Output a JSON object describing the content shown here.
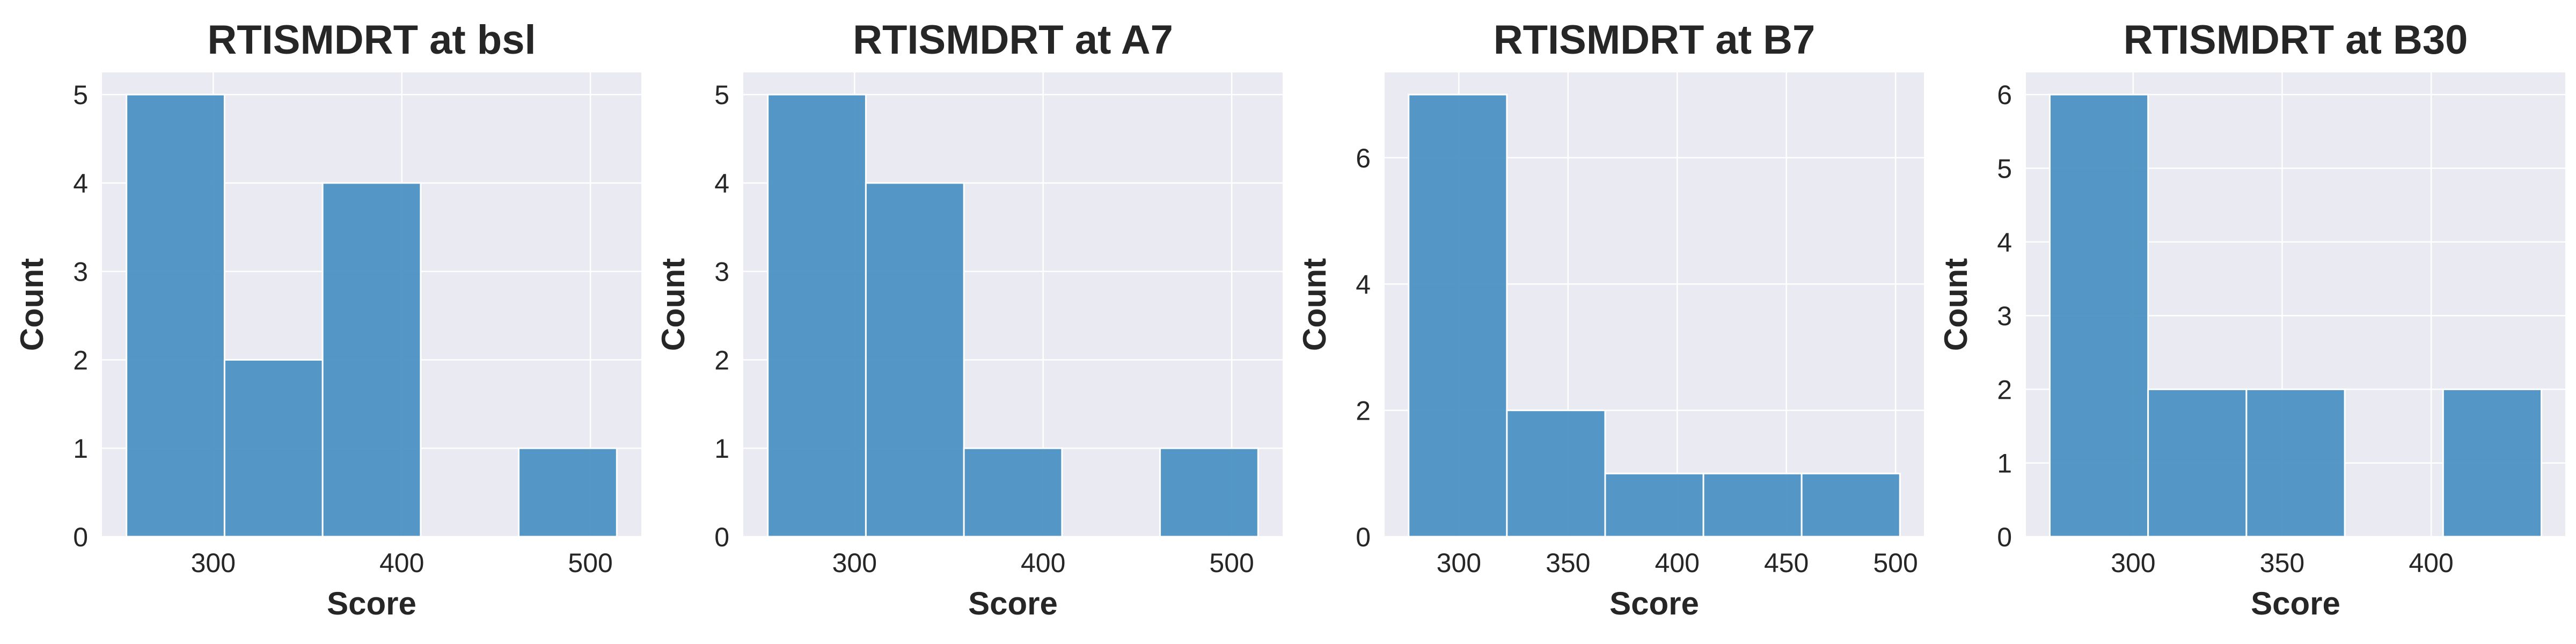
{
  "chart_data": [
    {
      "type": "bar",
      "title": "RTISMDRT at bsl",
      "xlabel": "Score",
      "ylabel": "Count",
      "bin_edges": [
        254,
        306,
        358,
        410,
        462,
        514
      ],
      "counts": [
        5,
        2,
        4,
        0,
        1
      ],
      "xlim": [
        241,
        527
      ],
      "ylim": [
        0,
        5.25
      ],
      "x_ticks": [
        300,
        400,
        500
      ],
      "y_ticks": [
        0,
        1,
        2,
        3,
        4,
        5
      ],
      "grid": true
    },
    {
      "type": "bar",
      "title": "RTISMDRT at A7",
      "xlabel": "Score",
      "ylabel": "Count",
      "bin_edges": [
        254,
        306,
        358,
        410,
        462,
        514
      ],
      "counts": [
        5,
        4,
        1,
        0,
        1
      ],
      "xlim": [
        241,
        527
      ],
      "ylim": [
        0,
        5.25
      ],
      "x_ticks": [
        300,
        400,
        500
      ],
      "y_ticks": [
        0,
        1,
        2,
        3,
        4,
        5
      ],
      "grid": true
    },
    {
      "type": "bar",
      "title": "RTISMDRT at B7",
      "xlabel": "Score",
      "ylabel": "Count",
      "bin_edges": [
        277,
        322,
        367,
        412,
        457,
        502
      ],
      "counts": [
        7,
        2,
        1,
        1,
        1
      ],
      "xlim": [
        266,
        513
      ],
      "ylim": [
        0,
        7.35
      ],
      "x_ticks": [
        300,
        350,
        400,
        450,
        500
      ],
      "y_ticks": [
        0,
        2,
        4,
        6
      ],
      "grid": true
    },
    {
      "type": "bar",
      "title": "RTISMDRT at B30",
      "xlabel": "Score",
      "ylabel": "Count",
      "bin_edges": [
        272,
        305,
        338,
        371,
        404,
        437
      ],
      "counts": [
        6,
        2,
        2,
        0,
        2
      ],
      "xlim": [
        264,
        445
      ],
      "ylim": [
        0,
        6.3
      ],
      "x_ticks": [
        300,
        350,
        400
      ],
      "y_ticks": [
        0,
        1,
        2,
        3,
        4,
        5,
        6
      ],
      "grid": true
    }
  ],
  "colors": {
    "bar_fill": "#4c92c3",
    "bar_edge": "#ffffff",
    "plot_background": "#eaeaf2",
    "grid": "#ffffff",
    "text": "#262626"
  }
}
